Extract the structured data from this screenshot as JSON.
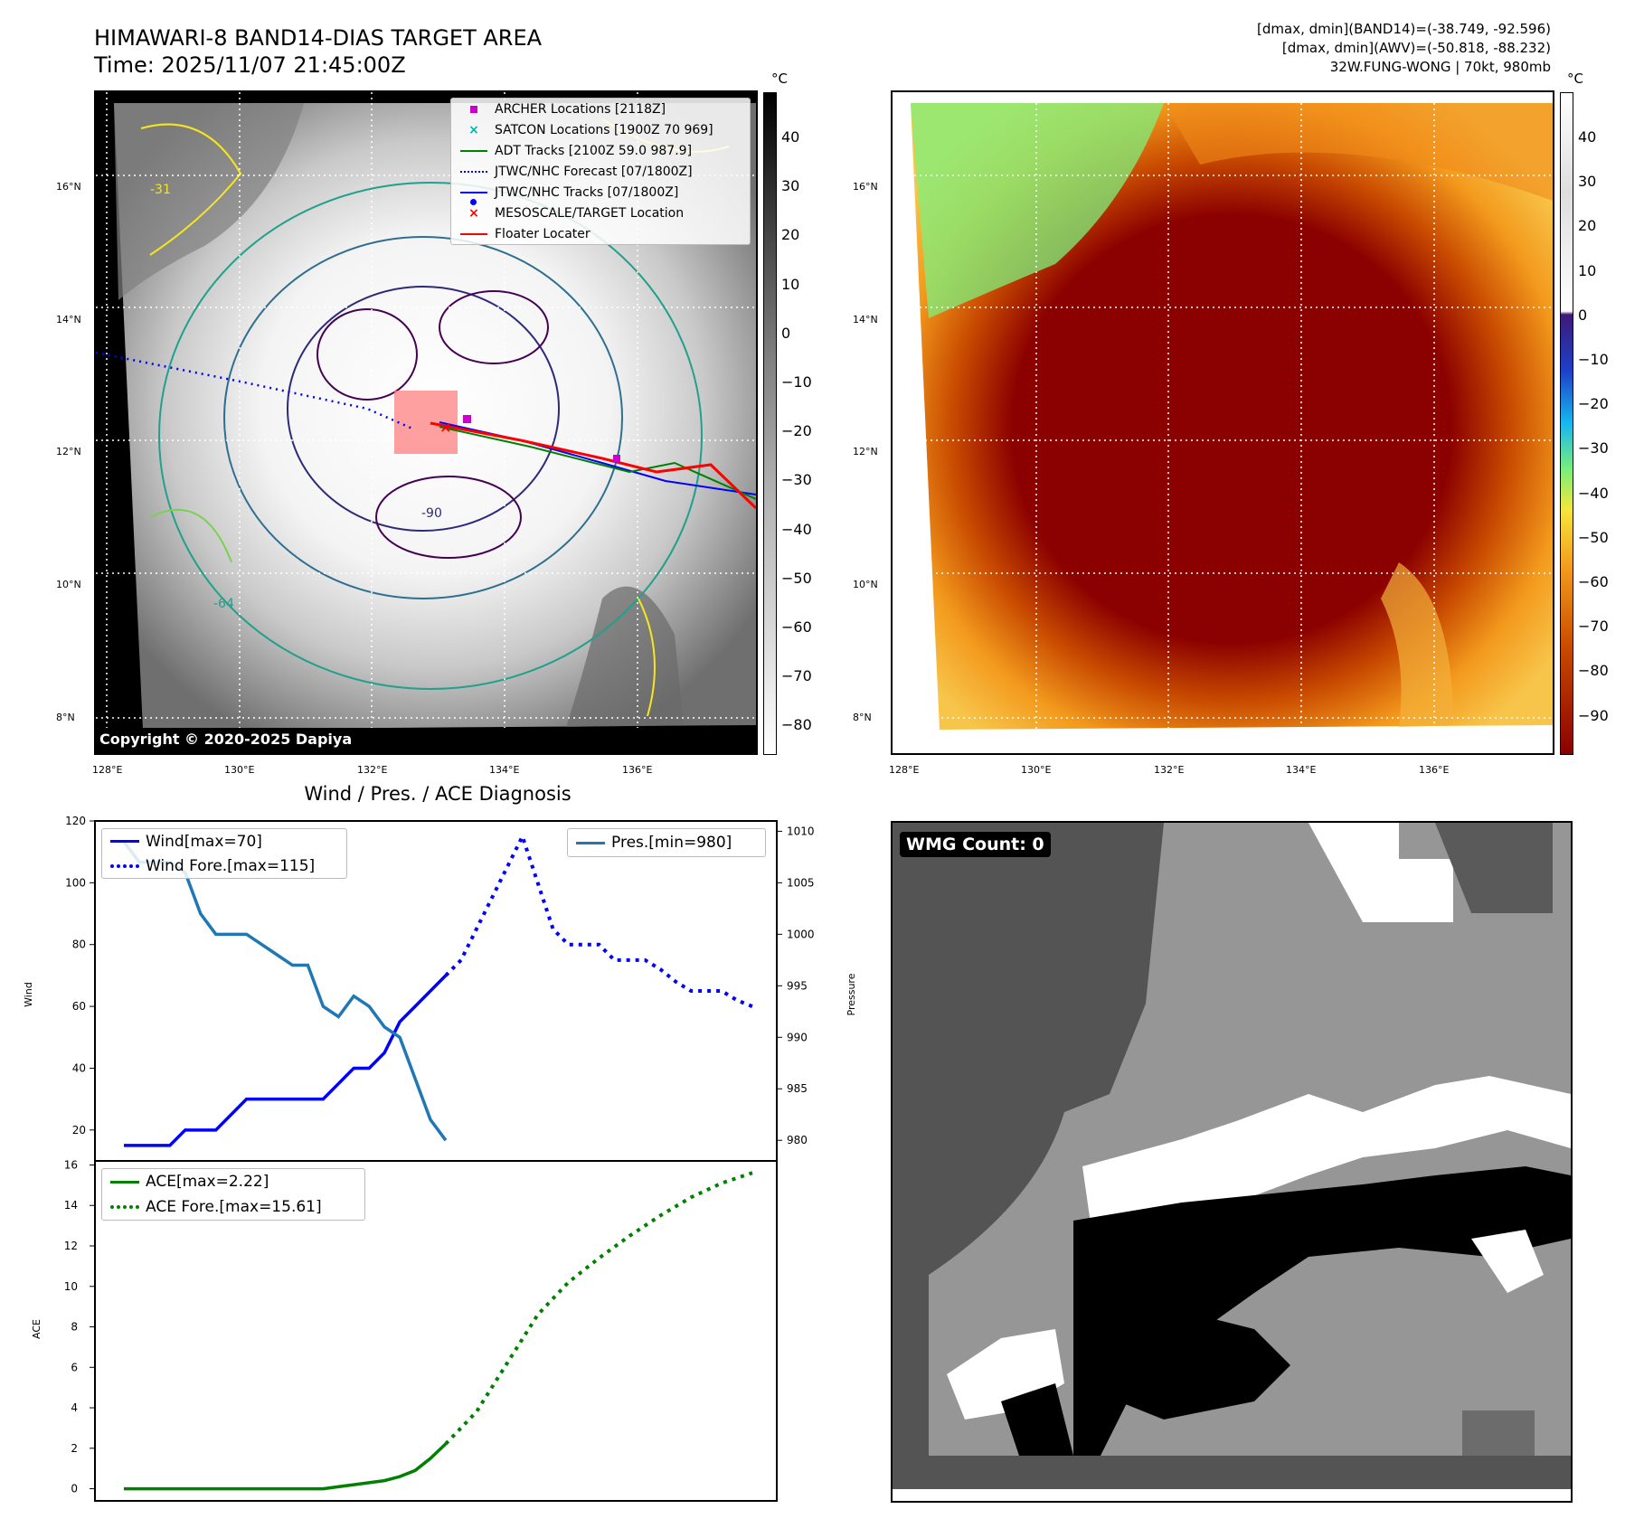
{
  "header": {
    "title": "HIMAWARI-8 BAND14-DIAS TARGET AREA",
    "time": "Time: 2025/11/07 21:45:00Z",
    "info1": "[dmax, dmin](BAND14)=(-38.749, -92.596)",
    "info2": "[dmax, dmin](AWV)=(-50.818, -88.232)",
    "info3": "32W.FUNG-WONG | 70kt, 980mb"
  },
  "map": {
    "lat_labels": [
      "16°N",
      "14°N",
      "12°N",
      "10°N",
      "8°N"
    ],
    "lon_labels": [
      "128°E",
      "130°E",
      "132°E",
      "134°E",
      "136°E"
    ],
    "copyright": "Copyright © 2020-2025 Dapiya",
    "contour_labels": [
      "-31",
      "-64",
      "-90"
    ]
  },
  "legend_map": [
    {
      "label": "ARCHER Locations [2118Z]",
      "color": "#cc00cc",
      "symbol": "square"
    },
    {
      "label": "SATCON Locations [1900Z 70 969]",
      "color": "#00b3b3",
      "symbol": "x"
    },
    {
      "label": "ADT Tracks [2100Z 59.0 987.9]",
      "color": "#008000",
      "symbol": "line"
    },
    {
      "label": "JTWC/NHC Forecast [07/1800Z]",
      "color": "#0000ff",
      "symbol": "dotted"
    },
    {
      "label": "JTWC/NHC Tracks [07/1800Z]",
      "color": "#0000ff",
      "symbol": "line-dot"
    },
    {
      "label": "MESOSCALE/TARGET Location",
      "color": "#ff0000",
      "symbol": "x"
    },
    {
      "label": "Floater Locater",
      "color": "#ff0000",
      "symbol": "line"
    }
  ],
  "colorbar_left": {
    "unit": "°C",
    "ticks": [
      "40",
      "30",
      "20",
      "10",
      "0",
      "−10",
      "−20",
      "−30",
      "−40",
      "−50",
      "−60",
      "−70",
      "−80"
    ]
  },
  "colorbar_right": {
    "unit": "°C",
    "ticks": [
      "40",
      "30",
      "20",
      "10",
      "0",
      "−10",
      "−20",
      "−30",
      "−40",
      "−50",
      "−60",
      "−70",
      "−80",
      "−90"
    ]
  },
  "chart_data": [
    {
      "type": "line",
      "title": "Wind / Pres. / ACE Diagnosis",
      "ylabel": "Wind",
      "ylabel_right": "Pressure",
      "ylim": [
        10,
        120
      ],
      "ylim_right": [
        978,
        1011
      ],
      "yticks": [
        "120",
        "100",
        "80",
        "60",
        "40",
        "20"
      ],
      "yticks_right": [
        "1010",
        "1005",
        "1000",
        "995",
        "990",
        "985",
        "980"
      ],
      "series": [
        {
          "name": "Wind[max=70]",
          "color": "#0000ff",
          "style": "solid",
          "axis": "left",
          "x": [
            0,
            1,
            2,
            3,
            4,
            5,
            6,
            7,
            8,
            9,
            10,
            11,
            12,
            13,
            14,
            15,
            16,
            17,
            18,
            19,
            20,
            21
          ],
          "values": [
            15,
            15,
            15,
            15,
            20,
            20,
            20,
            25,
            30,
            30,
            30,
            30,
            30,
            30,
            35,
            40,
            40,
            45,
            55,
            60,
            65,
            70
          ]
        },
        {
          "name": "Wind Fore.[max=115]",
          "color": "#0000ff",
          "style": "dotted",
          "axis": "left",
          "x": [
            21,
            22,
            23,
            24,
            25,
            26,
            27,
            28,
            29,
            30,
            31,
            32,
            33,
            34,
            35,
            36,
            37,
            38,
            39,
            40,
            41
          ],
          "values": [
            70,
            75,
            85,
            95,
            105,
            115,
            100,
            85,
            80,
            80,
            80,
            75,
            75,
            75,
            72,
            68,
            65,
            65,
            65,
            62,
            60
          ]
        },
        {
          "name": "Pres.[min=980]",
          "color": "#1f77b4",
          "style": "solid",
          "axis": "right",
          "x": [
            0,
            1,
            2,
            3,
            4,
            5,
            6,
            7,
            8,
            9,
            10,
            11,
            12,
            13,
            14,
            15,
            16,
            17,
            18,
            19,
            20,
            21
          ],
          "values": [
            1009,
            1007,
            1007,
            1007,
            1006,
            1002,
            1000,
            1000,
            1000,
            999,
            998,
            997,
            997,
            993,
            992,
            994,
            993,
            991,
            990,
            986,
            982,
            980
          ]
        }
      ]
    },
    {
      "type": "line",
      "ylabel": "ACE",
      "ylim": [
        -0.6,
        16.2
      ],
      "yticks": [
        "16",
        "14",
        "12",
        "10",
        "8",
        "6",
        "4",
        "2",
        "0"
      ],
      "series": [
        {
          "name": "ACE[max=2.22]",
          "color": "#008000",
          "style": "solid",
          "x": [
            0,
            5,
            10,
            13,
            15,
            17,
            18,
            19,
            20,
            21
          ],
          "values": [
            0,
            0,
            0,
            0,
            0.2,
            0.4,
            0.6,
            0.9,
            1.5,
            2.22
          ]
        },
        {
          "name": "ACE Fore.[max=15.61]",
          "color": "#008000",
          "style": "dotted",
          "x": [
            21,
            23,
            25,
            27,
            29,
            31,
            33,
            35,
            37,
            39,
            41
          ],
          "values": [
            2.22,
            3.8,
            6.2,
            8.6,
            10.2,
            11.4,
            12.5,
            13.5,
            14.4,
            15.1,
            15.61
          ]
        }
      ]
    }
  ],
  "wmg": {
    "label": "WMG Count: 0"
  }
}
